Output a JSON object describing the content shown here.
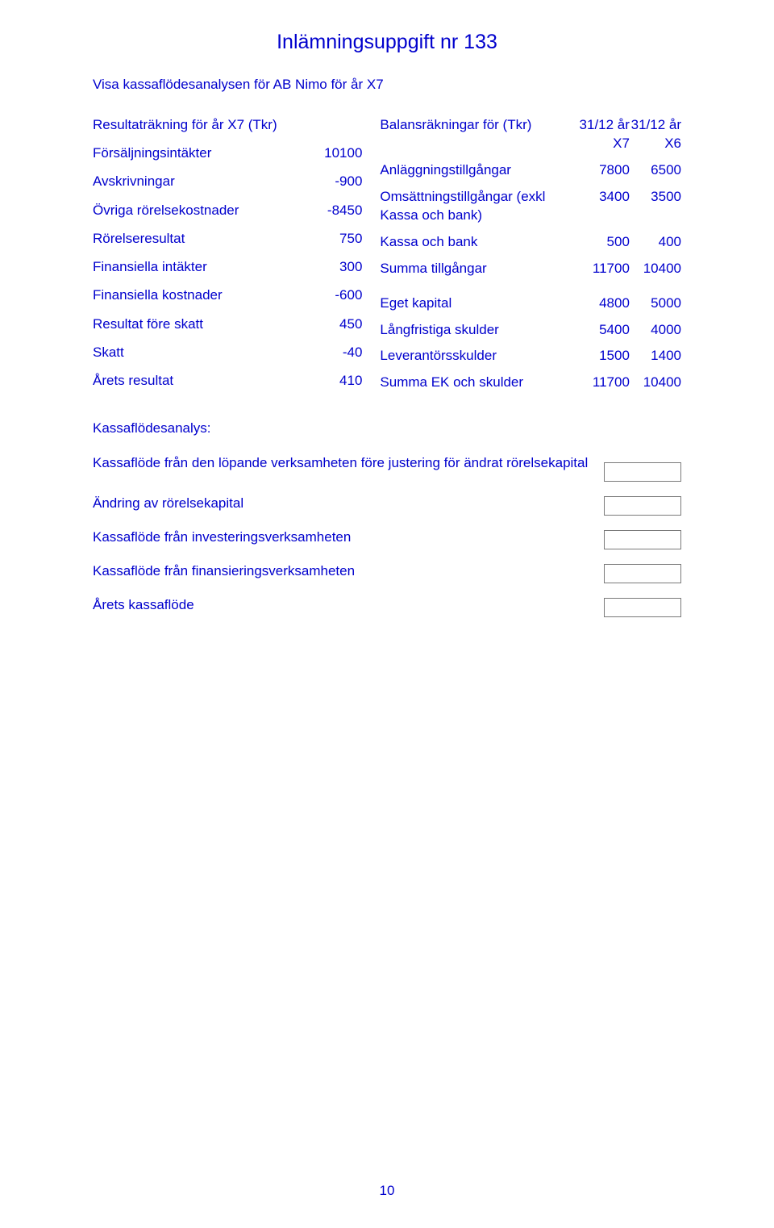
{
  "colors": {
    "text": "#0000cd",
    "background": "#ffffff",
    "input_border": "#7a7a7a"
  },
  "page_number": "10",
  "title": "Inlämningsuppgift nr 133",
  "subtitle": "Visa kassaflödesanalysen för AB Nimo för år X7",
  "left_table": {
    "header": {
      "label": "Resultaträkning för år X7 (Tkr)",
      "value": ""
    },
    "rows": [
      {
        "label": "Försäljningsintäkter",
        "value": "10100"
      },
      {
        "label": "Avskrivningar",
        "value": "-900"
      },
      {
        "label": "Övriga rörelsekostnader",
        "value": "-8450"
      },
      {
        "label": "Rörelseresultat",
        "value": "750"
      },
      {
        "label": "Finansiella intäkter",
        "value": "300"
      },
      {
        "label": "Finansiella kostnader",
        "value": "-600"
      },
      {
        "label": "Resultat före skatt",
        "value": "450"
      },
      {
        "label": "Skatt",
        "value": "-40"
      },
      {
        "label": "Årets resultat",
        "value": "410"
      }
    ]
  },
  "right_table": {
    "header": {
      "label": "Balansräkningar för (Tkr)",
      "v1": "31/12 år X7",
      "v2": "31/12 år X6"
    },
    "rows": [
      {
        "label": "Anläggningstillgångar",
        "v1": "7800",
        "v2": "6500"
      },
      {
        "label": "Omsättningstillgångar (exkl Kassa och bank)",
        "v1": "3400",
        "v2": "3500"
      },
      {
        "label": "Kassa och bank",
        "v1": "500",
        "v2": "400"
      },
      {
        "label": "Summa tillgångar",
        "v1": "11700",
        "v2": "10400"
      },
      {
        "label": "",
        "v1": "",
        "v2": ""
      },
      {
        "label": "Eget kapital",
        "v1": "4800",
        "v2": "5000"
      },
      {
        "label": "Långfristiga skulder",
        "v1": "5400",
        "v2": "4000"
      },
      {
        "label": "Leverantörsskulder",
        "v1": "1500",
        "v2": "1400"
      },
      {
        "label": "Summa EK och skulder",
        "v1": "11700",
        "v2": "10400"
      }
    ]
  },
  "analysis": {
    "title": "Kassaflödesanalys:",
    "lines": [
      "Kassaflöde från den löpande verksamheten före justering för ändrat rörelsekapital",
      "Ändring av rörelsekapital",
      "Kassaflöde från investeringsverksamheten",
      "Kassaflöde från finansieringsverksamheten",
      "Årets kassaflöde"
    ]
  }
}
